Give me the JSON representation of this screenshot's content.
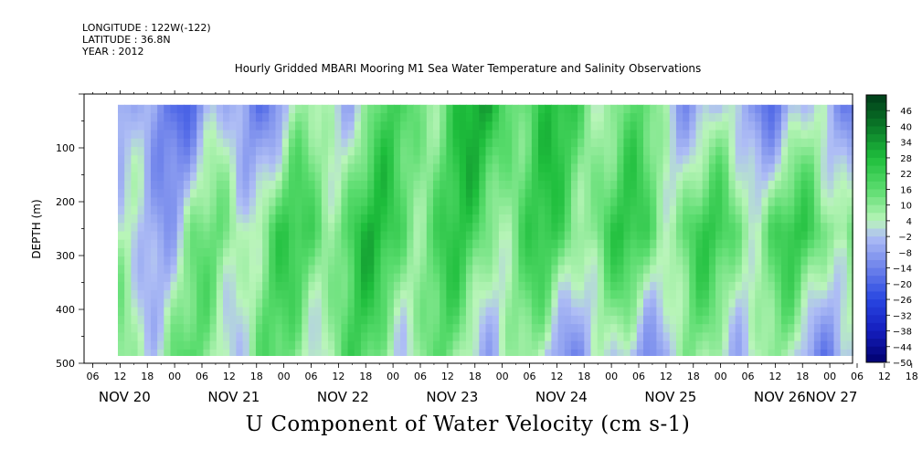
{
  "header": {
    "longitude": "LONGITUDE : 122W(-122)",
    "latitude": "LATITUDE : 36.8N",
    "year": "YEAR : 2012"
  },
  "title": "Hourly Gridded MBARI Mooring M1 Sea Water Temperature and Salinity Observations",
  "caption": "U Component of Water Velocity (cm s-1)",
  "chart_data": {
    "type": "heatmap",
    "variable": "U Component of Water Velocity",
    "units": "cm s-1",
    "ylabel": "DEPTH (m)",
    "y_ticks": [
      100,
      200,
      300,
      400,
      500
    ],
    "ylim": [
      500,
      0
    ],
    "data_depth_range": [
      20,
      490
    ],
    "x_hour_ticks": [
      "06",
      "12",
      "18",
      "00",
      "06",
      "12",
      "18",
      "00",
      "06",
      "12",
      "18",
      "00",
      "06",
      "12",
      "18",
      "00",
      "06",
      "12",
      "18",
      "00",
      "06",
      "12",
      "18",
      "00",
      "06",
      "12",
      "18",
      "00",
      "06",
      "12",
      "18",
      "00"
    ],
    "x_day_labels": [
      "NOV 20",
      "NOV 21",
      "NOV 22",
      "NOV 23",
      "NOV 24",
      "NOV 25",
      "NOV 26",
      "NOV 27"
    ],
    "colorbar_labels": [
      46,
      40,
      34,
      28,
      22,
      16,
      10,
      4,
      -2,
      -8,
      -14,
      -20,
      -26,
      -32,
      -38,
      -44,
      -50
    ],
    "colorbar_range": [
      -50,
      52
    ],
    "colorbar_colors": {
      "strong_negative": "#000066",
      "negative": "#2040d8",
      "weak_negative": "#a8b8f0",
      "weak_positive": "#b8f0b0",
      "positive": "#28d040",
      "strong_positive": "#003818"
    },
    "velocity_pattern_by_day": [
      {
        "day": "NOV 20",
        "surface": -12,
        "mid": -6,
        "deep": 10
      },
      {
        "day": "NOV 21",
        "surface": -10,
        "mid": 12,
        "deep": 8
      },
      {
        "day": "NOV 22",
        "surface": 8,
        "mid": 22,
        "deep": 12
      },
      {
        "day": "NOV 23",
        "surface": 26,
        "mid": 16,
        "deep": 4
      },
      {
        "day": "NOV 24",
        "surface": 14,
        "mid": 18,
        "deep": -6
      },
      {
        "day": "NOV 25",
        "surface": -8,
        "mid": 16,
        "deep": 6
      },
      {
        "day": "NOV 26",
        "surface": -6,
        "mid": 18,
        "deep": -8
      }
    ]
  }
}
